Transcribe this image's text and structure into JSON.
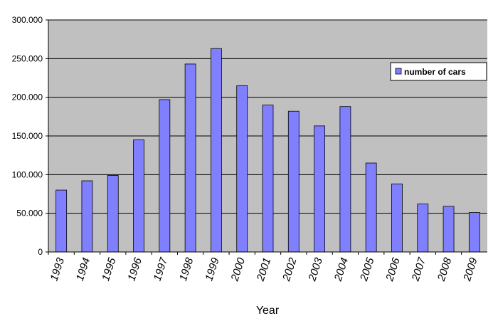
{
  "chart_data": {
    "type": "bar",
    "x_label": "Year",
    "categories": [
      "1993",
      "1994",
      "1995",
      "1996",
      "1997",
      "1998",
      "1999",
      "2000",
      "2001",
      "2002",
      "2003",
      "2004",
      "2005",
      "2006",
      "2007",
      "2008",
      "2009"
    ],
    "series": [
      {
        "name": "number of cars",
        "color": "#8080ff",
        "values": [
          80000,
          92000,
          99000,
          145000,
          197000,
          243000,
          263000,
          215000,
          190000,
          182000,
          163000,
          188000,
          115000,
          88000,
          62000,
          59000,
          51000
        ]
      }
    ],
    "ylim": [
      0,
      300000
    ],
    "yticks": [
      0,
      {
        "value": 50000,
        "label": "50.000"
      },
      {
        "value": 100000,
        "label": "100.000"
      },
      {
        "value": 150000,
        "label": "150.000"
      },
      {
        "value": 200000,
        "label": "200.000"
      },
      {
        "value": 250000,
        "label": "250.000"
      },
      {
        "value": 300000,
        "label": "300.000"
      }
    ],
    "grid": true,
    "legend": "right"
  }
}
